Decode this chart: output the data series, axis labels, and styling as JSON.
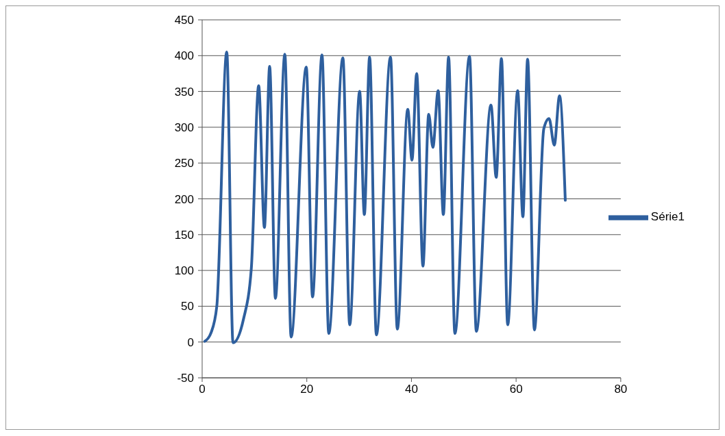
{
  "chart_data": {
    "type": "line",
    "x": [
      0.5,
      1.7,
      2.8,
      4.7,
      5.9,
      7.9,
      9.4,
      10.8,
      11.9,
      12.9,
      14.0,
      15.8,
      17.0,
      19.9,
      21.1,
      22.9,
      24.2,
      26.9,
      28.2,
      30.1,
      31.0,
      32.0,
      33.3,
      36.0,
      37.3,
      39.3,
      40.1,
      41.0,
      42.2,
      43.3,
      44.1,
      45.1,
      46.1,
      47.1,
      48.3,
      51.1,
      52.4,
      55.2,
      56.2,
      57.2,
      58.4,
      60.3,
      61.3,
      62.2,
      63.5,
      65.3,
      66.3,
      67.3,
      68.3,
      69.4
    ],
    "series": [
      {
        "name": "Série1",
        "color": "#2e5f9e",
        "values": [
          1,
          13,
          50,
          405,
          -1,
          32,
          103,
          358,
          160,
          385,
          61,
          402,
          7,
          384,
          63,
          401,
          12,
          397,
          24,
          350,
          178,
          398,
          10,
          398,
          18,
          325,
          254,
          375,
          106,
          318,
          272,
          351,
          178,
          398,
          12,
          399,
          15,
          331,
          230,
          396,
          24,
          351,
          175,
          395,
          17,
          298,
          312,
          275,
          344,
          198
        ]
      }
    ],
    "xlim": [
      0,
      80
    ],
    "xticks": [
      0,
      20,
      40,
      60,
      80
    ],
    "ylim": [
      -50,
      450
    ],
    "yticks": [
      -50,
      0,
      50,
      100,
      150,
      200,
      250,
      300,
      350,
      400,
      450
    ],
    "grid": "y",
    "legend": "right",
    "marker": "none",
    "line_style": "solid"
  }
}
